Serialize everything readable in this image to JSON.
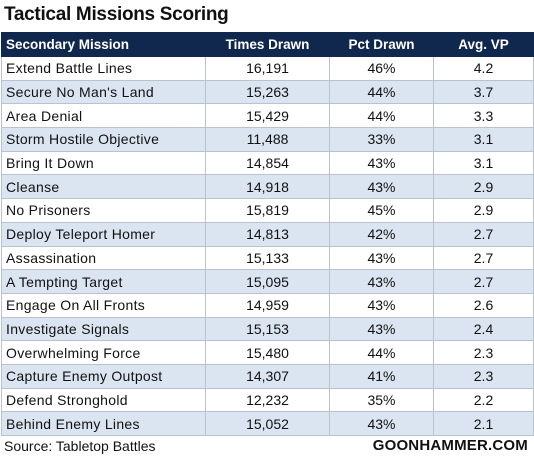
{
  "chart_data": {
    "type": "table",
    "title": "Tactical Missions Scoring",
    "columns": [
      "Secondary Mission",
      "Times Drawn",
      "Pct Drawn",
      "Avg. VP"
    ],
    "rows": [
      [
        "Extend Battle Lines",
        "16,191",
        "46%",
        "4.2"
      ],
      [
        "Secure No Man's Land",
        "15,263",
        "44%",
        "3.7"
      ],
      [
        "Area Denial",
        "15,429",
        "44%",
        "3.3"
      ],
      [
        "Storm Hostile Objective",
        "11,488",
        "33%",
        "3.1"
      ],
      [
        "Bring It Down",
        "14,854",
        "43%",
        "3.1"
      ],
      [
        "Cleanse",
        "14,918",
        "43%",
        "2.9"
      ],
      [
        "No Prisoners",
        "15,819",
        "45%",
        "2.9"
      ],
      [
        "Deploy Teleport Homer",
        "14,813",
        "42%",
        "2.7"
      ],
      [
        "Assassination",
        "15,133",
        "43%",
        "2.7"
      ],
      [
        "A Tempting Target",
        "15,095",
        "43%",
        "2.7"
      ],
      [
        "Engage On All Fronts",
        "14,959",
        "43%",
        "2.6"
      ],
      [
        "Investigate Signals",
        "15,153",
        "43%",
        "2.4"
      ],
      [
        "Overwhelming Force",
        "15,480",
        "44%",
        "2.3"
      ],
      [
        "Capture Enemy Outpost",
        "14,307",
        "41%",
        "2.3"
      ],
      [
        "Defend Stronghold",
        "12,232",
        "35%",
        "2.2"
      ],
      [
        "Behind Enemy Lines",
        "15,052",
        "43%",
        "2.1"
      ]
    ],
    "source": "Source: Tabletop Battles",
    "credit": "GOONHAMMER.COM"
  },
  "colors": {
    "header_bg": "#11284e",
    "header_text": "#ffffff",
    "row_alt": "#dbe5f1",
    "row_base": "#ffffff",
    "grid": "#b9c3cd"
  }
}
